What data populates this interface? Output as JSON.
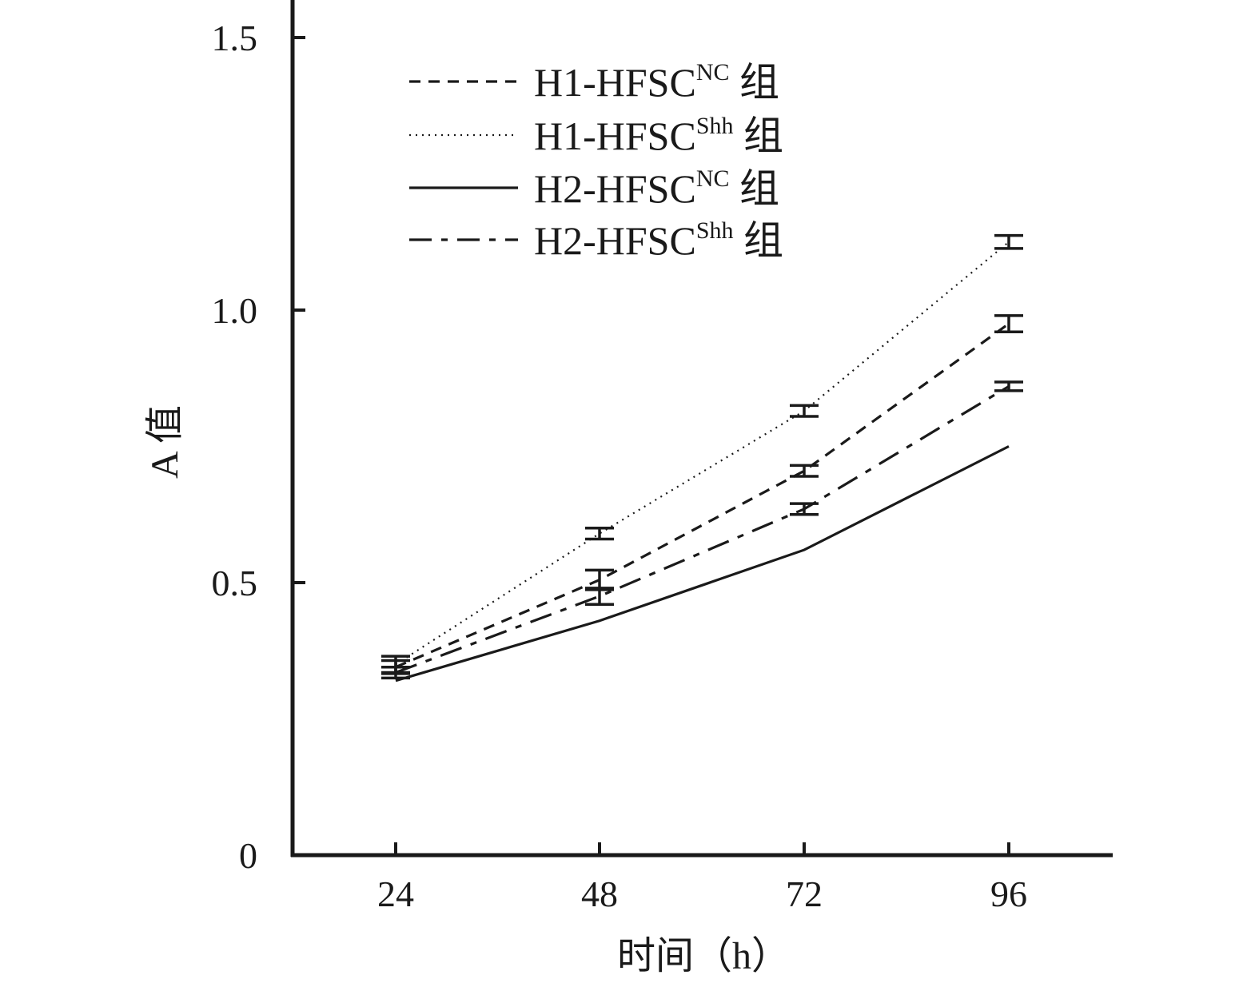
{
  "chart_data": {
    "type": "line",
    "x": [
      24,
      48,
      72,
      96
    ],
    "xticks": [
      "24",
      "48",
      "72",
      "96"
    ],
    "xlabel": "时间（h）",
    "ylabel": "A 值",
    "ylim": [
      0,
      1.5
    ],
    "yticks": [
      0,
      0.5,
      1.0,
      1.5
    ],
    "ytick_labels": [
      "0",
      "0.5",
      "1.0",
      "1.5"
    ],
    "grid": false,
    "legend_position": "top-left",
    "series": [
      {
        "name": "H1-HFSC^NC 组",
        "label_main": "H1-HFSC",
        "label_sup": "NC",
        "label_suffix": " 组",
        "style": "dashed",
        "values": [
          0.345,
          0.505,
          0.705,
          0.975
        ],
        "errors": [
          0.012,
          0.018,
          0.01,
          0.015
        ]
      },
      {
        "name": "H1-HFSC^Shh 组",
        "label_main": "H1-HFSC",
        "label_sup": "Shh",
        "label_suffix": " 组",
        "style": "dotted",
        "values": [
          0.35,
          0.59,
          0.815,
          1.125
        ],
        "errors": [
          0.015,
          0.01,
          0.01,
          0.012
        ]
      },
      {
        "name": "H2-HFSC^NC 组",
        "label_main": "H2-HFSC",
        "label_sup": "NC",
        "label_suffix": " 组",
        "style": "solid",
        "values": [
          0.32,
          0.43,
          0.56,
          0.75
        ],
        "errors": [
          0,
          0,
          0,
          0
        ]
      },
      {
        "name": "H2-HFSC^Shh 组",
        "label_main": "H2-HFSC",
        "label_sup": "Shh",
        "label_suffix": " 组",
        "style": "dashdot",
        "values": [
          0.335,
          0.475,
          0.635,
          0.86
        ],
        "errors": [
          0.01,
          0.015,
          0.01,
          0.008
        ]
      }
    ]
  }
}
